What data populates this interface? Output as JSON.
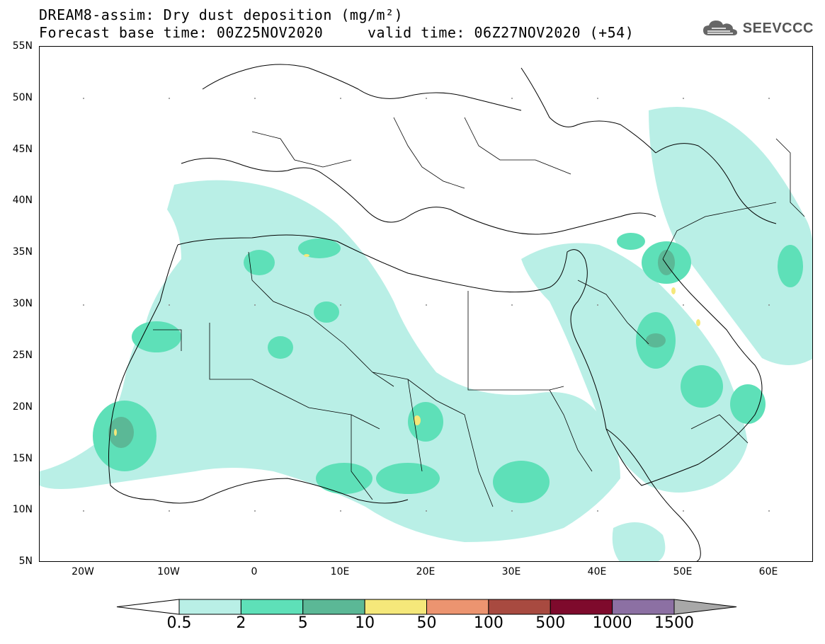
{
  "title_line1": "DREAM8-assim: Dry dust deposition (mg/m²)",
  "title_line2": "Forecast base time: 00Z25NOV2020     valid time: 06Z27NOV2020 (+54)",
  "logo_text": "SEEVCCC",
  "lat_labels": [
    "55N",
    "50N",
    "45N",
    "40N",
    "35N",
    "30N",
    "25N",
    "20N",
    "15N",
    "10N",
    "5N"
  ],
  "lon_labels": [
    "20W",
    "10W",
    "0",
    "10E",
    "20E",
    "30E",
    "40E",
    "50E",
    "60E"
  ],
  "colorbar": {
    "levels": [
      "0.5",
      "2",
      "5",
      "10",
      "50",
      "100",
      "500",
      "1000",
      "1500"
    ],
    "colors": [
      "#ffffff",
      "#b9efe6",
      "#5ee0b8",
      "#5bb896",
      "#f5e87a",
      "#ec9470",
      "#a84a40",
      "#7e0a2c",
      "#8c70a3",
      "#a8a8a8"
    ]
  }
}
